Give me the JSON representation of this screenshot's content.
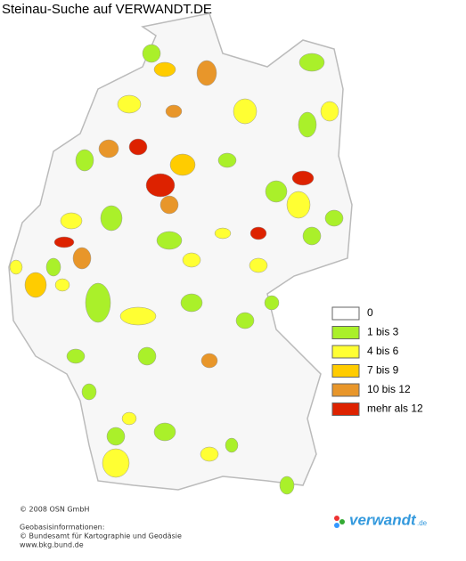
{
  "title": "Steinau-Suche auf VERWANDT.DE",
  "legend": [
    {
      "label": "0",
      "color": "#ffffff"
    },
    {
      "label": "1 bis 3",
      "color": "#aaf02a"
    },
    {
      "label": "4 bis 6",
      "color": "#ffff33"
    },
    {
      "label": "7 bis 9",
      "color": "#ffcc00"
    },
    {
      "label": "10 bis 12",
      "color": "#e8962a"
    },
    {
      "label": "mehr als 12",
      "color": "#dd2200"
    }
  ],
  "footer": {
    "copyright": "© 2008 OSN GmbH",
    "source_heading": "Geobasisinformationen:",
    "source": "© Bundesamt für Kartographie und Geodäsie",
    "url": "www.bkg.bund.de"
  },
  "logo": {
    "name": "verwandt",
    "tld": ".de"
  }
}
